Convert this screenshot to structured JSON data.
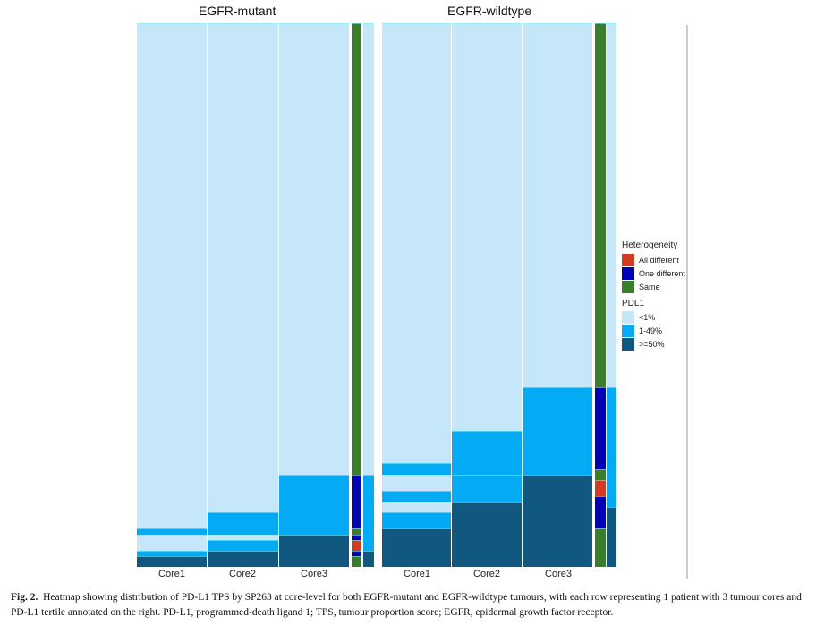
{
  "chart_data": {
    "type": "heatmap",
    "colors": {
      "<1%": "#c6e6fa",
      "1-49%": "#04aaf4",
      ">=50%": "#10587f",
      "All different": "#d23c22",
      "One different": "#0000b4",
      "Same": "#3a7d2c"
    },
    "panels": [
      {
        "title": "EGFR-mutant",
        "columns": [
          {
            "label": "Core1",
            "runs": [
              [
                "<1%",
                93
              ],
              [
                "1-49%",
                1
              ],
              [
                "<1%",
                3
              ],
              [
                "1-49%",
                1
              ],
              [
                ">=50%",
                2
              ]
            ]
          },
          {
            "label": "Core2",
            "runs": [
              [
                "<1%",
                90
              ],
              [
                "1-49%",
                4
              ],
              [
                "<1%",
                1
              ],
              [
                "1-49%",
                2
              ],
              [
                ">=50%",
                3
              ]
            ]
          },
          {
            "label": "Core3",
            "runs": [
              [
                "<1%",
                83
              ],
              [
                "1-49%",
                11
              ],
              [
                ">=50%",
                6
              ]
            ]
          }
        ],
        "heterogeneity": [
          [
            "Same",
            83
          ],
          [
            "One different",
            10
          ],
          [
            "Same",
            1
          ],
          [
            "One different",
            1
          ],
          [
            "All different",
            2
          ],
          [
            "One different",
            1
          ],
          [
            "Same",
            2
          ]
        ],
        "pdl1": [
          [
            "<1%",
            83
          ],
          [
            "1-49%",
            14
          ],
          [
            ">=50%",
            3
          ]
        ]
      },
      {
        "title": "EGFR-wildtype",
        "columns": [
          {
            "label": "Core1",
            "runs": [
              [
                "<1%",
                81
              ],
              [
                "1-49%",
                2
              ],
              [
                "<1%",
                3
              ],
              [
                "1-49%",
                2
              ],
              [
                "<1%",
                2
              ],
              [
                "1-49%",
                3
              ],
              [
                ">=50%",
                7
              ]
            ]
          },
          {
            "label": "Core2",
            "runs": [
              [
                "<1%",
                75
              ],
              [
                "1-49%",
                8
              ],
              [
                "1-49%",
                5
              ],
              [
                ">=50%",
                12
              ]
            ]
          },
          {
            "label": "Core3",
            "runs": [
              [
                "<1%",
                67
              ],
              [
                "1-49%",
                16
              ],
              [
                ">=50%",
                17
              ]
            ]
          }
        ],
        "heterogeneity": [
          [
            "Same",
            67
          ],
          [
            "One different",
            15
          ],
          [
            "Same",
            2
          ],
          [
            "All different",
            3
          ],
          [
            "One different",
            6
          ],
          [
            "Same",
            7
          ]
        ],
        "pdl1": [
          [
            "<1%",
            67
          ],
          [
            "1-49%",
            22
          ],
          [
            ">=50%",
            11
          ]
        ]
      }
    ],
    "legend": {
      "heterogeneity_title": "Heterogeneity",
      "heterogeneity": [
        "All different",
        "One different",
        "Same"
      ],
      "pdl1_title": "PDL1",
      "pdl1": [
        "<1%",
        "1-49%",
        ">=50%"
      ]
    }
  },
  "caption": {
    "label": "Fig. 2.",
    "text": "Heatmap showing distribution of PD-L1 TPS by SP263 at core-level for both EGFR-mutant and EGFR-wildtype tumours, with each row representing 1 patient with 3 tumour cores and PD-L1 tertile annotated on the right. PD-L1, programmed-death ligand 1; TPS, tumour proportion score; EGFR, epidermal growth factor receptor."
  }
}
